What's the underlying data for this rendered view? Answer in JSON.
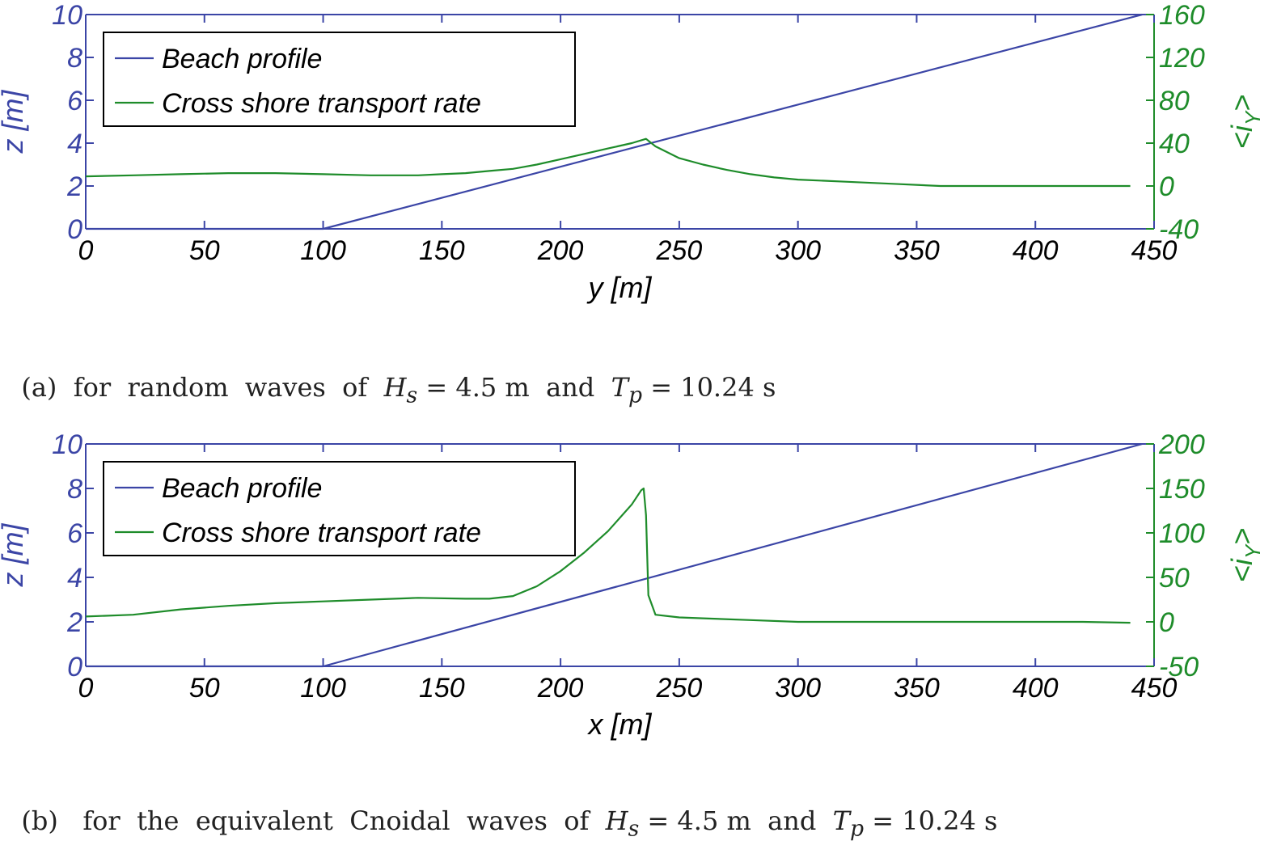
{
  "chart_data": [
    {
      "type": "line",
      "caption": {
        "prefix": "(a)  for  random  waves  of  ",
        "hs": "H",
        "hs_sub": "s",
        "hs_val": " = 4.5 m",
        "mid": "  and  ",
        "tp": "T",
        "tp_sub": "p",
        "tp_val": " = 10.24 s"
      },
      "xlabel": "y [m]",
      "ylabel_left": "z [m]",
      "ylabel_right": "<i",
      "ylabel_right_sub": "Y",
      "ylabel_right_end": ">",
      "xlim": [
        0,
        450
      ],
      "ylim_left": [
        0,
        10
      ],
      "ylim_right": [
        -40,
        160
      ],
      "xticks": [
        "0",
        "50",
        "100",
        "150",
        "200",
        "250",
        "300",
        "350",
        "400",
        "450"
      ],
      "yticks_left": [
        "0",
        "2",
        "4",
        "6",
        "8",
        "10"
      ],
      "yticks_right": [
        "-40",
        "0",
        "40",
        "80",
        "120",
        "160"
      ],
      "legend": {
        "placement": "top-left",
        "entries": [
          "Beach profile",
          "Cross shore transport rate"
        ]
      },
      "colors": {
        "beach": "#3b45a6",
        "transport": "#1e8c2a",
        "left_axis": "#3b45a6",
        "right_axis": "#1e8c2a"
      },
      "series": [
        {
          "name": "Beach profile",
          "axis": "left",
          "x": [
            0,
            100,
            445
          ],
          "y": [
            0,
            0,
            10
          ]
        },
        {
          "name": "Cross shore transport rate",
          "axis": "right",
          "x": [
            0,
            20,
            40,
            60,
            80,
            100,
            120,
            140,
            150,
            160,
            170,
            180,
            190,
            200,
            210,
            220,
            230,
            236,
            240,
            250,
            260,
            270,
            280,
            290,
            300,
            320,
            340,
            360,
            380,
            400,
            420,
            440
          ],
          "y": [
            9,
            10,
            11,
            12,
            12,
            11,
            10,
            10,
            11,
            12,
            14,
            16,
            20,
            25,
            30,
            35,
            40,
            44,
            37,
            26,
            20,
            15,
            11,
            8,
            6,
            4,
            2,
            0,
            0,
            0,
            0,
            0
          ]
        }
      ]
    },
    {
      "type": "line",
      "caption": {
        "prefix": "(b)   for  the  equivalent  Cnoidal  waves  of  ",
        "hs": "H",
        "hs_sub": "s",
        "hs_val": " = 4.5 m",
        "mid": "  and  ",
        "tp": "T",
        "tp_sub": "p",
        "tp_val": " = 10.24 s"
      },
      "xlabel": "x [m]",
      "ylabel_left": "z [m]",
      "ylabel_right": "<i",
      "ylabel_right_sub": "Y",
      "ylabel_right_end": ">",
      "xlim": [
        0,
        450
      ],
      "ylim_left": [
        0,
        10
      ],
      "ylim_right": [
        -50,
        200
      ],
      "xticks": [
        "0",
        "50",
        "100",
        "150",
        "200",
        "250",
        "300",
        "350",
        "400",
        "450"
      ],
      "yticks_left": [
        "0",
        "2",
        "4",
        "6",
        "8",
        "10"
      ],
      "yticks_right": [
        "-50",
        "0",
        "50",
        "100",
        "150",
        "200"
      ],
      "legend": {
        "placement": "top-left",
        "entries": [
          "Beach profile",
          "Cross shore transport rate"
        ]
      },
      "colors": {
        "beach": "#3b45a6",
        "transport": "#1e8c2a",
        "left_axis": "#3b45a6",
        "right_axis": "#1e8c2a"
      },
      "series": [
        {
          "name": "Beach profile",
          "axis": "left",
          "x": [
            0,
            100,
            445
          ],
          "y": [
            0,
            0,
            10
          ]
        },
        {
          "name": "Cross shore transport rate",
          "axis": "right",
          "x": [
            0,
            20,
            40,
            60,
            80,
            100,
            120,
            140,
            160,
            170,
            180,
            190,
            200,
            210,
            220,
            230,
            234,
            235,
            236,
            237,
            240,
            250,
            260,
            280,
            300,
            320,
            340,
            360,
            380,
            400,
            420,
            440
          ],
          "y": [
            6,
            8,
            14,
            18,
            21,
            23,
            25,
            27,
            26,
            26,
            29,
            40,
            57,
            78,
            102,
            132,
            148,
            150,
            120,
            30,
            8,
            5,
            4,
            2,
            0,
            0,
            0,
            0,
            0,
            0,
            0,
            -1
          ]
        }
      ]
    }
  ]
}
